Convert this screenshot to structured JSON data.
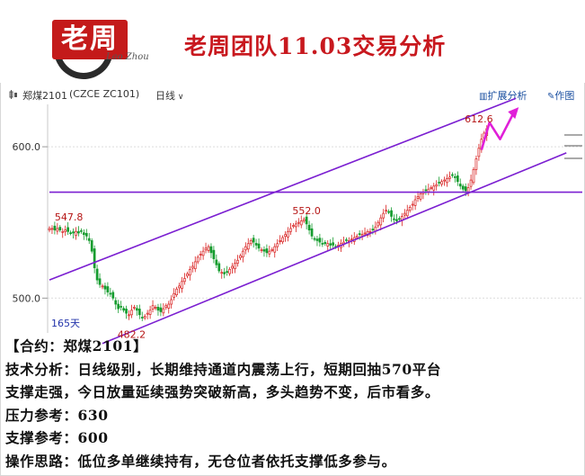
{
  "header": {
    "logo_text": "老周",
    "logo_signature": "Lao Zhou",
    "title": "老周团队11.03交易分析"
  },
  "toolbar": {
    "instrument": "郑煤2101",
    "code": "(CZCE ZC101)",
    "period": "日线",
    "ext_analysis": "扩展分析",
    "drawing": "作图"
  },
  "chart_data": {
    "type": "candlestick",
    "y_ticks": [
      600.0,
      500.0
    ],
    "y_tick_labels": [
      "600.0",
      "500.0"
    ],
    "ylim": [
      477,
      628
    ],
    "annotations": [
      {
        "text": "547.8",
        "day": 2,
        "value": 547.8
      },
      {
        "text": "552.0",
        "day": 97,
        "value": 552.0
      },
      {
        "text": "482.2",
        "day": 31,
        "value": 482.2
      },
      {
        "text": "612.6",
        "day": 162,
        "value": 612.6
      }
    ],
    "period_label": "165天",
    "horizontal_level": 570,
    "channel_upper": {
      "day_start": 0,
      "value_start": 512,
      "day_end": 176,
      "value_end": 632
    },
    "channel_lower": {
      "day_start": 20,
      "value_start": 470,
      "day_end": 195,
      "value_end": 596
    },
    "closes": [
      546,
      546,
      545,
      546,
      545,
      544,
      545,
      544,
      543,
      543,
      544,
      543,
      544,
      542,
      541,
      538,
      531,
      520,
      512,
      509,
      508,
      506,
      504,
      503,
      500,
      496,
      493,
      494,
      492,
      490,
      489,
      492,
      494,
      492,
      489,
      487,
      488,
      490,
      492,
      495,
      494,
      492,
      491,
      493,
      495,
      496,
      499,
      503,
      506,
      508,
      511,
      513,
      516,
      519,
      521,
      524,
      527,
      529,
      531,
      533,
      534,
      530,
      526,
      522,
      518,
      517,
      516,
      517,
      519,
      521,
      523,
      525,
      528,
      531,
      534,
      536,
      538,
      537,
      535,
      533,
      532,
      531,
      530,
      531,
      532,
      534,
      536,
      538,
      540,
      542,
      544,
      546,
      548,
      549,
      550,
      551,
      552,
      549,
      545,
      541,
      539,
      538,
      537,
      536,
      536,
      536,
      535,
      535,
      534,
      535,
      536,
      537,
      538,
      538,
      539,
      540,
      541,
      542,
      542,
      543,
      544,
      544,
      545,
      547,
      550,
      553,
      556,
      558,
      557,
      554,
      552,
      551,
      552,
      554,
      556,
      558,
      560,
      562,
      565,
      567,
      569,
      570,
      571,
      572,
      573,
      574,
      575,
      576,
      577,
      578,
      579,
      580,
      581,
      580,
      577,
      574,
      572,
      571,
      573,
      578,
      585,
      592,
      599,
      605,
      609,
      612
    ]
  },
  "notes": {
    "contract": "【合约：郑煤2101】",
    "tech": "技术分析：日线级别，长期维持通道内震荡上行，短期回抽570平台",
    "tech2": "支撑走强，今日放量延续强势突破新高，多头趋势不变，后市看多。",
    "pressure": "压力参考：630",
    "support": "支撑参考：600",
    "plan": "操作思路：低位多单继续持有，无仓位者依托支撑低多参与。"
  }
}
